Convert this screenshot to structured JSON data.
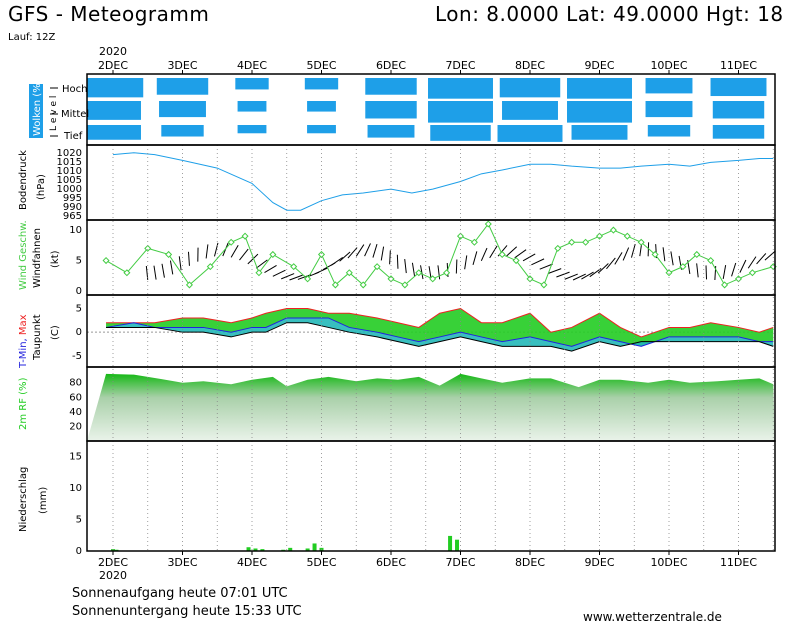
{
  "header": {
    "title": "GFS - Meteogramm",
    "coords": "Lon: 8.0000  Lat: 49.0000  Hgt: 18",
    "run": "Lauf: 12Z"
  },
  "footer": {
    "year_top": "2020",
    "year_bottom": "2020",
    "sunrise": "Sonnenaufgang heute 07:01 UTC",
    "sunset": "Sonnenuntergang heute 15:33 UTC",
    "credit": "www.wetterzentrale.de"
  },
  "colors": {
    "cloud": "#1e9fe8",
    "pressure": "#1e9fe8",
    "wind": "#44cc44",
    "tmin": "#2222dd",
    "tmax": "#ee2222",
    "temp_fill": "#22cc22",
    "dew_fill": "#22b8b8",
    "rh": "#22cc22",
    "precip": "#22cc22"
  },
  "chart_data": [
    {
      "type": "area",
      "panel": "clouds",
      "ylabel": "Wolken (%)",
      "level_axis_label": "L e v e l",
      "levels": [
        "Hoch",
        "Mittel",
        "Tief"
      ],
      "x": [
        "2DEC",
        "3DEC",
        "4DEC",
        "5DEC",
        "6DEC",
        "7DEC",
        "8DEC",
        "9DEC",
        "10DEC",
        "11DEC"
      ],
      "high_cover": [
        80,
        60,
        20,
        20,
        60,
        90,
        80,
        90,
        50,
        70
      ],
      "mid_cover": [
        70,
        50,
        10,
        10,
        60,
        90,
        70,
        90,
        50,
        60
      ],
      "low_cover": [
        70,
        40,
        10,
        10,
        50,
        80,
        90,
        70,
        40,
        60
      ]
    },
    {
      "type": "line",
      "panel": "pressure",
      "ylabel": "Bodendruck",
      "unit": "(hPa)",
      "yticks": [
        965,
        990,
        995,
        1000,
        1005,
        1010,
        1015,
        1020
      ],
      "x": [
        2.0,
        2.3,
        2.6,
        3.0,
        3.5,
        4.0,
        4.3,
        4.5,
        4.7,
        5.0,
        5.3,
        5.6,
        6.0,
        6.3,
        6.6,
        7.0,
        7.3,
        7.6,
        8.0,
        8.3,
        8.6,
        9.0,
        9.3,
        9.6,
        10.0,
        10.3,
        10.6,
        11.0,
        11.3,
        11.5
      ],
      "values": [
        1017,
        1018,
        1017,
        1014,
        1010,
        1002,
        992,
        988,
        988,
        993,
        996,
        997,
        999,
        997,
        999,
        1003,
        1007,
        1009,
        1012,
        1012,
        1011,
        1010,
        1010,
        1011,
        1012,
        1011,
        1013,
        1014,
        1015,
        1015
      ]
    },
    {
      "type": "line",
      "panel": "wind",
      "ylabel": "Wind Geschw.",
      "ylabel2": "Windfahnen",
      "unit": "(kt)",
      "yticks": [
        0,
        5,
        10
      ],
      "x": [
        1.9,
        2.2,
        2.5,
        2.8,
        3.1,
        3.4,
        3.7,
        3.9,
        4.1,
        4.3,
        4.6,
        4.8,
        5.0,
        5.2,
        5.4,
        5.6,
        5.8,
        6.0,
        6.2,
        6.4,
        6.6,
        6.8,
        7.0,
        7.2,
        7.4,
        7.6,
        7.8,
        8.0,
        8.2,
        8.4,
        8.6,
        8.8,
        9.0,
        9.2,
        9.4,
        9.6,
        9.8,
        10.0,
        10.2,
        10.4,
        10.6,
        10.8,
        11.0,
        11.2,
        11.5
      ],
      "values": [
        5,
        3,
        7,
        6,
        1,
        4,
        8,
        9,
        3,
        6,
        4,
        2,
        6,
        1,
        3,
        1,
        4,
        2,
        1,
        3,
        2,
        3,
        9,
        8,
        11,
        6,
        5,
        2,
        1,
        7,
        8,
        8,
        9,
        10,
        9,
        8,
        6,
        3,
        4,
        6,
        5,
        1,
        2,
        3,
        4
      ]
    },
    {
      "type": "area",
      "panel": "temperature",
      "ylabel": "T-Min, Max",
      "ylabel2": "Taupunkt",
      "unit": "(C)",
      "yticks": [
        -5,
        0,
        5
      ],
      "x": [
        1.9,
        2.3,
        2.6,
        3.0,
        3.3,
        3.7,
        4.0,
        4.2,
        4.5,
        4.8,
        5.1,
        5.4,
        5.8,
        6.1,
        6.4,
        6.7,
        7.0,
        7.3,
        7.6,
        8.0,
        8.3,
        8.6,
        9.0,
        9.3,
        9.6,
        10.0,
        10.3,
        10.6,
        11.0,
        11.3,
        11.5
      ],
      "tmax": [
        2,
        2,
        2,
        3,
        3,
        2,
        3,
        4,
        5,
        5,
        4,
        4,
        3,
        2,
        1,
        4,
        5,
        2,
        2,
        4,
        0,
        1,
        4,
        1,
        -1,
        1,
        1,
        2,
        1,
        0,
        1
      ],
      "tmin": [
        1,
        2,
        1,
        1,
        1,
        0,
        1,
        1,
        3,
        3,
        3,
        1,
        0,
        -1,
        -2,
        -1,
        0,
        -1,
        -2,
        -1,
        -2,
        -3,
        -1,
        -2,
        -3,
        -1,
        -1,
        -1,
        -1,
        -2,
        -2
      ],
      "dewpoint": [
        1,
        1,
        1,
        0,
        0,
        -1,
        0,
        0,
        2,
        2,
        1,
        0,
        -1,
        -2,
        -3,
        -2,
        -1,
        -2,
        -3,
        -3,
        -3,
        -4,
        -2,
        -3,
        -2,
        -2,
        -2,
        -2,
        -2,
        -2,
        -3
      ]
    },
    {
      "type": "area",
      "panel": "humidity",
      "ylabel": "2m RF (%)",
      "yticks": [
        20,
        40,
        60,
        80
      ],
      "x": [
        1.9,
        2.3,
        2.7,
        3.0,
        3.3,
        3.7,
        4.0,
        4.3,
        4.5,
        4.8,
        5.1,
        5.5,
        5.8,
        6.1,
        6.4,
        6.7,
        7.0,
        7.3,
        7.6,
        8.0,
        8.3,
        8.7,
        9.0,
        9.3,
        9.7,
        10.0,
        10.3,
        10.7,
        11.0,
        11.3,
        11.5
      ],
      "values": [
        92,
        91,
        85,
        80,
        82,
        78,
        84,
        88,
        75,
        84,
        88,
        82,
        86,
        84,
        88,
        76,
        92,
        86,
        80,
        86,
        86,
        74,
        84,
        84,
        80,
        84,
        80,
        82,
        84,
        86,
        78
      ]
    },
    {
      "type": "bar",
      "panel": "precipitation",
      "ylabel": "Niederschlag",
      "unit": "(mm)",
      "yticks": [
        0,
        5,
        10,
        15
      ],
      "x": [
        2.0,
        2.05,
        3.95,
        4.05,
        4.15,
        4.45,
        4.55,
        4.8,
        4.9,
        5.0,
        6.85,
        6.95
      ],
      "values": [
        0.3,
        0.2,
        0.6,
        0.4,
        0.3,
        0.2,
        0.5,
        0.4,
        1.2,
        0.5,
        2.4,
        1.8
      ]
    }
  ],
  "x_axis": {
    "ticks": [
      "2DEC",
      "3DEC",
      "4DEC",
      "5DEC",
      "6DEC",
      "7DEC",
      "8DEC",
      "9DEC",
      "10DEC",
      "11DEC"
    ]
  }
}
